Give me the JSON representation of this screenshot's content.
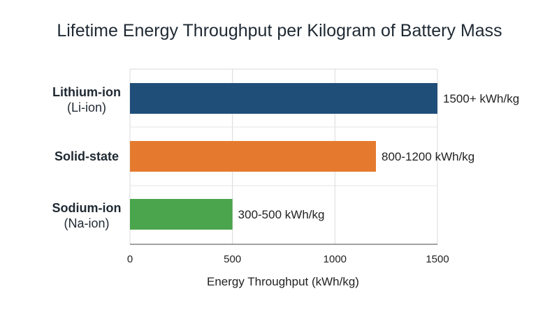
{
  "chart_data": {
    "type": "bar",
    "orientation": "horizontal",
    "title": "Lifetime Energy Throughput per Kilogram of Battery Mass",
    "xlabel": "Energy Throughput (kWh/kg)",
    "ylabel": "",
    "xlim": [
      0,
      1500
    ],
    "xticks": [
      0,
      500,
      1000,
      1500
    ],
    "grid": true,
    "categories": [
      {
        "label": "Lithium-ion",
        "sublabel": "(Li-ion)",
        "value": 1500,
        "value_label": "1500+ kWh/kg",
        "color": "#1f4e79"
      },
      {
        "label": "Solid-state",
        "sublabel": "",
        "value": 1200,
        "value_label": "800-1200 kWh/kg",
        "color": "#e57a2e"
      },
      {
        "label": "Sodium-ion",
        "sublabel": "(Na-ion)",
        "value": 500,
        "value_label": "300-500 kWh/kg",
        "color": "#4aa54d"
      }
    ]
  }
}
